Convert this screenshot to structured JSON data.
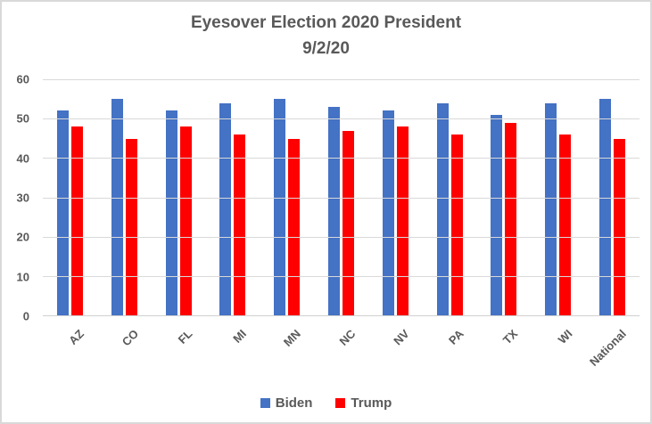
{
  "chart_data": {
    "type": "bar",
    "title": "Eyesover Election 2020 President",
    "subtitle": "9/2/20",
    "categories": [
      "AZ",
      "CO",
      "FL",
      "MI",
      "MN",
      "NC",
      "NV",
      "PA",
      "TX",
      "WI",
      "National"
    ],
    "series": [
      {
        "name": "Biden",
        "color": "#4472C4",
        "values": [
          52,
          55,
          52,
          54,
          55,
          53,
          52,
          54,
          51,
          54,
          55
        ]
      },
      {
        "name": "Trump",
        "color": "#FF0000",
        "values": [
          48,
          45,
          48,
          46,
          45,
          47,
          48,
          46,
          49,
          46,
          45
        ]
      }
    ],
    "ylim": [
      0,
      60
    ],
    "yticks": [
      0,
      10,
      20,
      30,
      40,
      50,
      60
    ],
    "grid": true,
    "legend_position": "bottom",
    "xlabel": "",
    "ylabel": ""
  },
  "colors": {
    "title_text": "#595959",
    "axis_text": "#595959",
    "gridline": "#D9D9D9",
    "frame_border": "#D9D9D9",
    "background": "#FFFFFF"
  }
}
